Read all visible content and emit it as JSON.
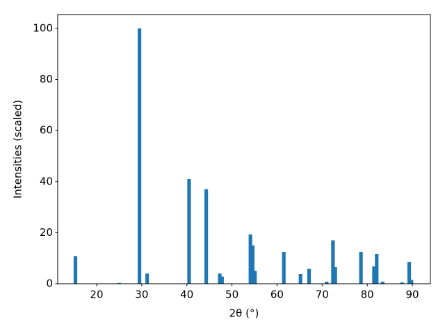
{
  "chart_data": {
    "type": "bar",
    "xlabel": "2θ (°)",
    "ylabel": "Intensities (scaled)",
    "x": [
      15.3,
      25.0,
      29.5,
      31.2,
      40.5,
      44.3,
      47.3,
      47.8,
      54.1,
      54.6,
      55.1,
      61.5,
      65.2,
      67.1,
      71.0,
      72.4,
      72.9,
      78.6,
      81.5,
      82.1,
      83.4,
      87.7,
      89.3,
      89.8
    ],
    "values": [
      10.8,
      0.3,
      100,
      4,
      41,
      37,
      4,
      2.8,
      19.3,
      15,
      5,
      12.5,
      3.8,
      5.8,
      0.8,
      17,
      6.5,
      12.5,
      6.8,
      11.7,
      0.8,
      0.5,
      8.5,
      1.5
    ],
    "color": "#1f77b4",
    "xlim": [
      11.37,
      94.0
    ],
    "xticks": [
      20,
      30,
      40,
      50,
      60,
      70,
      80,
      90
    ],
    "ylim": [
      0,
      105.4
    ],
    "yticks": [
      0,
      20,
      40,
      60,
      80,
      100
    ]
  }
}
